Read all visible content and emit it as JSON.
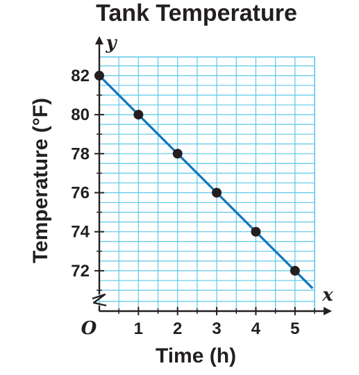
{
  "chart_data": {
    "type": "line",
    "title": "Tank Temperature",
    "xlabel": "Time (h)",
    "ylabel": "Temperature (°F)",
    "x_axis_var": "x",
    "y_axis_var": "y",
    "origin_label": "O",
    "xlim": [
      0,
      5.5
    ],
    "ylim": [
      71,
      83.5
    ],
    "x_ticks": [
      1,
      2,
      3,
      4,
      5
    ],
    "y_ticks": [
      72,
      74,
      76,
      78,
      80,
      82
    ],
    "axis_break": true,
    "grid": true,
    "series": [
      {
        "x": [
          0,
          1,
          2,
          3,
          4,
          5
        ],
        "y": [
          82,
          80,
          78,
          76,
          74,
          72
        ]
      }
    ],
    "trend_line": {
      "slope": -2,
      "intercept": 82
    },
    "colors": {
      "grid": "#5bc8e8",
      "line": "#0f75bc",
      "point": "#231f20",
      "axis": "#231f20"
    }
  }
}
